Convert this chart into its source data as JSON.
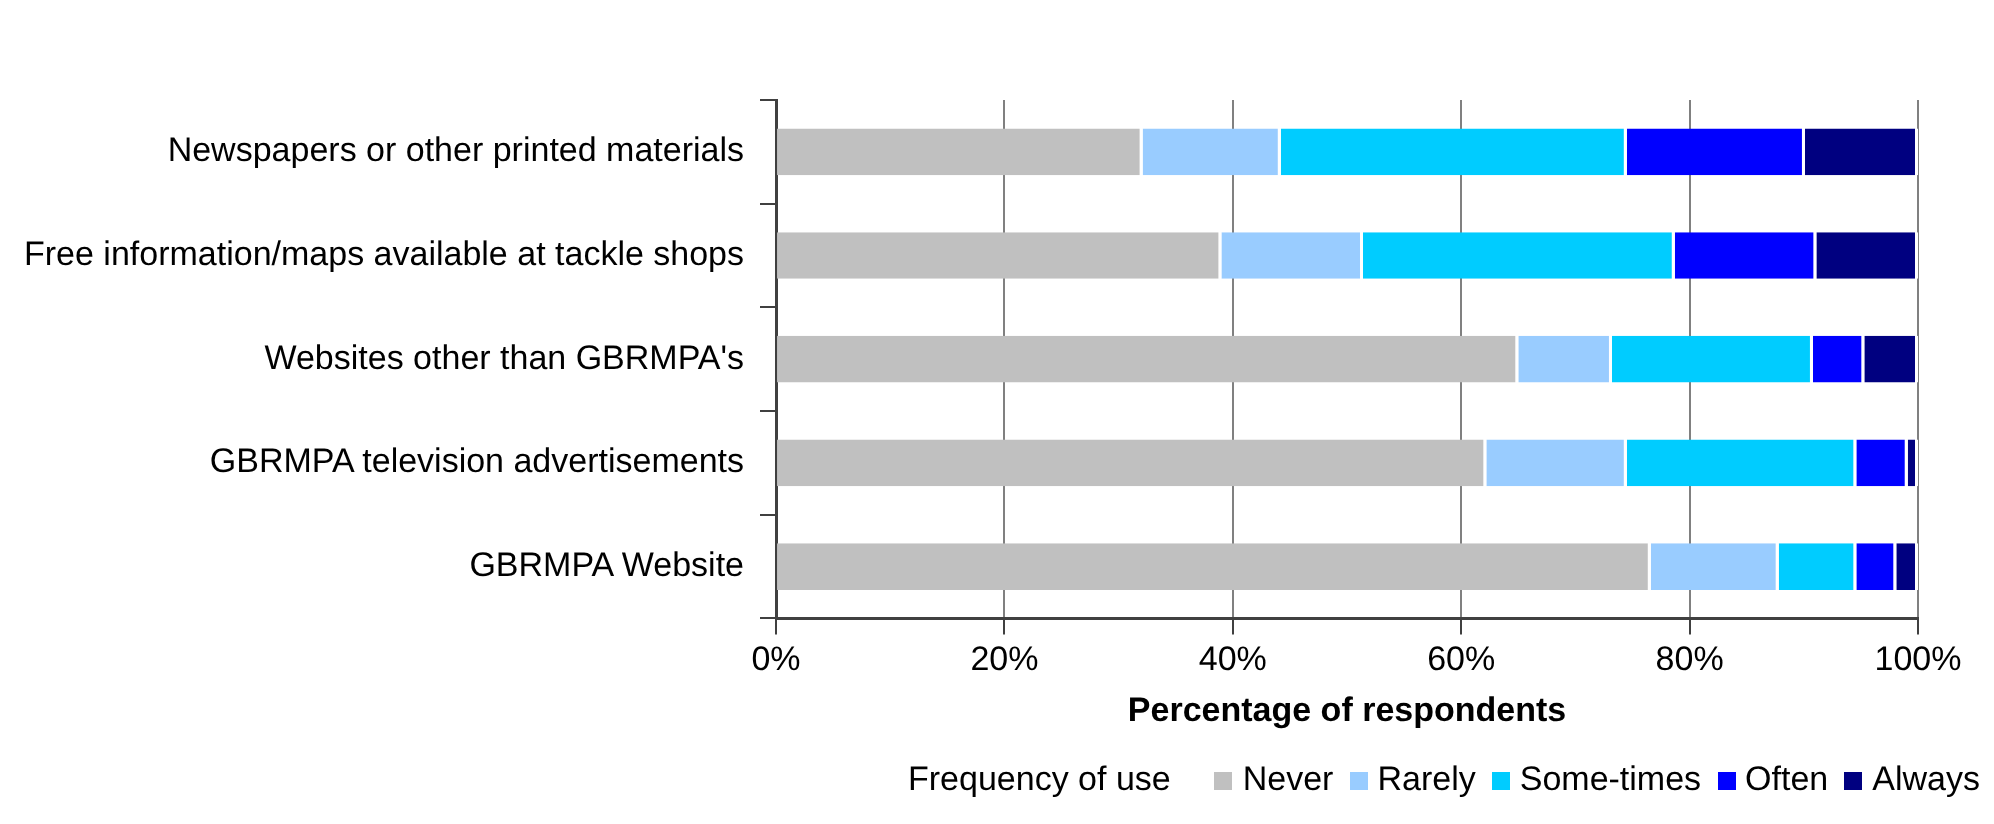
{
  "chart_data": {
    "type": "bar",
    "orientation": "horizontal",
    "stacked": true,
    "categories": [
      "Newspapers or other printed materials",
      "Free information/maps available at tackle shops",
      "Websites other than GBRMPA's",
      "GBRMPA television advertisements",
      "GBRMPA Website"
    ],
    "series": [
      {
        "name": "Never",
        "color": "#c0c0c0",
        "values": [
          32.1,
          39.0,
          65.0,
          62.2,
          76.6
        ]
      },
      {
        "name": "Rarely",
        "color": "#99ccff",
        "values": [
          12.1,
          12.4,
          8.2,
          12.3,
          11.2
        ]
      },
      {
        "name": "Some-times",
        "color": "#00ccff",
        "values": [
          30.3,
          27.3,
          17.6,
          20.1,
          6.8
        ]
      },
      {
        "name": "Often",
        "color": "#0000ff",
        "values": [
          15.6,
          12.4,
          4.5,
          4.5,
          3.5
        ]
      },
      {
        "name": "Always",
        "color": "#000080",
        "values": [
          9.9,
          8.9,
          4.7,
          0.9,
          1.9
        ]
      }
    ],
    "xlim": [
      0,
      100
    ],
    "xticks": [
      {
        "value": 0,
        "label": "0%"
      },
      {
        "value": 20,
        "label": "20%"
      },
      {
        "value": 40,
        "label": "40%"
      },
      {
        "value": 60,
        "label": "60%"
      },
      {
        "value": 80,
        "label": "80%"
      },
      {
        "value": 100,
        "label": "100%"
      }
    ],
    "xlabel": "Percentage of respondents",
    "legend_title": "Frequency of use",
    "legend": "bottom",
    "grid": "x"
  }
}
